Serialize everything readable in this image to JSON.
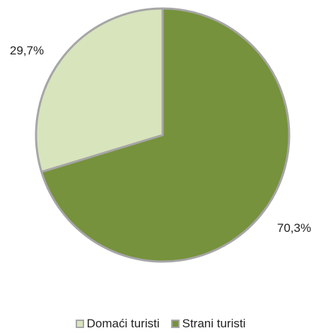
{
  "chart_data": {
    "type": "pie",
    "title": "",
    "series": [
      {
        "name": "Domaći turisti",
        "value": 29.7,
        "label": "29,7%",
        "color": "#d8e4bc"
      },
      {
        "name": "Strani turisti",
        "value": 70.3,
        "label": "70,3%",
        "color": "#76923c"
      }
    ],
    "slice_border_color": "#a6a6a6",
    "start": "12 o'clock",
    "direction": "clockwise (Strani turisti first)",
    "legend_position": "bottom",
    "grid": false
  }
}
